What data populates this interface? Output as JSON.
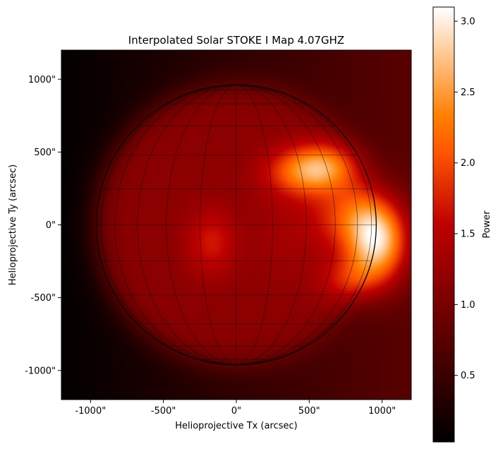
{
  "chart_data": {
    "type": "heatmap",
    "title": "Interpolated Solar STOKE I Map 4.07GHZ",
    "xlabel": "Helioprojective Tx (arcsec)",
    "ylabel": "Helioprojective Ty (arcsec)",
    "xlim": [
      -1200,
      1200
    ],
    "ylim": [
      -1200,
      1200
    ],
    "x_ticks": [
      {
        "value": -1000,
        "label": "-1000\""
      },
      {
        "value": -500,
        "label": "-500\""
      },
      {
        "value": 0,
        "label": "0\""
      },
      {
        "value": 500,
        "label": "500\""
      },
      {
        "value": 1000,
        "label": "1000\""
      }
    ],
    "y_ticks": [
      {
        "value": 1000,
        "label": "1000\""
      },
      {
        "value": 500,
        "label": "500\""
      },
      {
        "value": 0,
        "label": "0\""
      },
      {
        "value": -500,
        "label": "-500\""
      },
      {
        "value": -1000,
        "label": "-1000\""
      }
    ],
    "colormap": "gist_heat",
    "colorbar": {
      "label": "Power",
      "range": [
        0.03,
        3.1
      ],
      "ticks": [
        {
          "value": 0.5,
          "label": "0.5"
        },
        {
          "value": 1.0,
          "label": "1.0"
        },
        {
          "value": 1.5,
          "label": "1.5"
        },
        {
          "value": 2.0,
          "label": "2.0"
        },
        {
          "value": 2.5,
          "label": "2.5"
        },
        {
          "value": 3.0,
          "label": "3.0"
        }
      ]
    },
    "background_gradient": {
      "x_left": -1200,
      "x_right": 1200,
      "value_left": 0.05,
      "value_right": 0.75
    },
    "disk": {
      "center": [
        0,
        0
      ],
      "radius_arcsec": 960,
      "base_value": 1.15
    },
    "sources": [
      {
        "x": 980,
        "y": -110,
        "sigma_x": 140,
        "sigma_y": 200,
        "peak": 1.95
      },
      {
        "x": 760,
        "y": 60,
        "sigma_x": 180,
        "sigma_y": 170,
        "peak": 0.75
      },
      {
        "x": 450,
        "y": 360,
        "sigma_x": 180,
        "sigma_y": 120,
        "peak": 0.95
      },
      {
        "x": 620,
        "y": 410,
        "sigma_x": 160,
        "sigma_y": 110,
        "peak": 0.85
      },
      {
        "x": 800,
        "y": -380,
        "sigma_x": 160,
        "sigma_y": 110,
        "peak": 0.6
      },
      {
        "x": -170,
        "y": -120,
        "sigma_x": 120,
        "sigma_y": 160,
        "peak": 0.55
      },
      {
        "x": 320,
        "y": -80,
        "sigma_x": 150,
        "sigma_y": 220,
        "peak": 0.18
      }
    ],
    "grid": true,
    "grid_lines": {
      "longitudes_deg": [
        -75,
        -60,
        -45,
        -30,
        -15,
        0,
        15,
        30,
        45,
        60,
        75
      ],
      "latitudes_deg": [
        -75,
        -60,
        -45,
        -30,
        -15,
        0,
        15,
        30,
        45,
        60,
        75
      ]
    }
  }
}
